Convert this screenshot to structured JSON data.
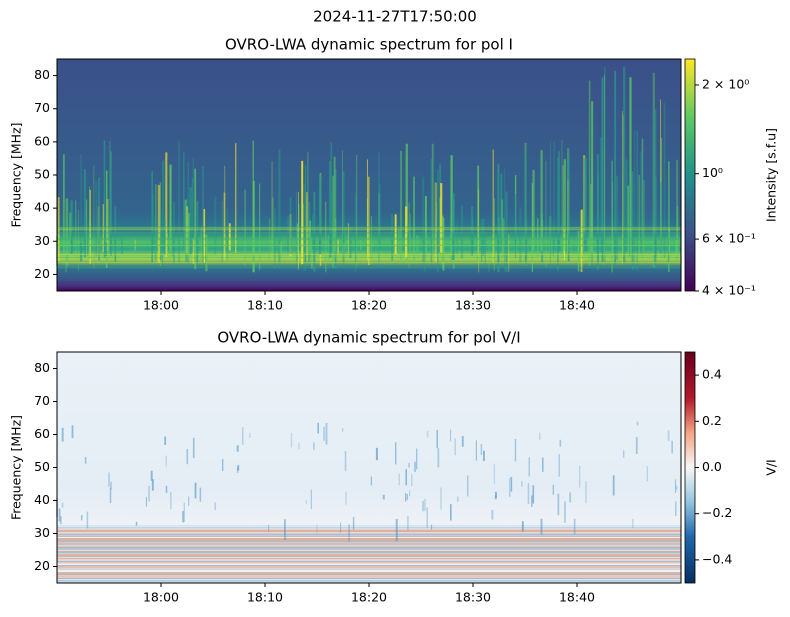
{
  "title": "2024-11-27T17:50:00",
  "chart_data": [
    {
      "type": "heatmap",
      "title": "OVRO-LWA dynamic spectrum for pol I",
      "ylabel": "Frequency [MHz]",
      "xlim": [
        "2024-11-27T17:50:00",
        "2024-11-27T18:50:00"
      ],
      "xticks": [
        {
          "value": "2024-11-27T18:00:00",
          "label": "18:00"
        },
        {
          "value": "2024-11-27T18:10:00",
          "label": "18:10"
        },
        {
          "value": "2024-11-27T18:20:00",
          "label": "18:20"
        },
        {
          "value": "2024-11-27T18:30:00",
          "label": "18:30"
        },
        {
          "value": "2024-11-27T18:40:00",
          "label": "18:40"
        }
      ],
      "ylim": [
        15,
        85
      ],
      "yticks": [
        20,
        30,
        40,
        50,
        60,
        70,
        80
      ],
      "colorbar": {
        "label": "Intensity [s.f.u]",
        "scale": "log",
        "colormap": "viridis",
        "lim": [
          0.4,
          2.45
        ],
        "ticks": [
          {
            "value": 2,
            "label": "2 × 10⁰"
          },
          {
            "value": 1,
            "label": "10⁰"
          },
          {
            "value": 0.6,
            "label": "6 × 10⁻¹"
          },
          {
            "value": 0.4,
            "label": "4 × 10⁻¹"
          }
        ]
      }
    },
    {
      "type": "heatmap",
      "title": "OVRO-LWA dynamic spectrum for pol V/I",
      "ylabel": "Frequency [MHz]",
      "xlim": [
        "2024-11-27T17:50:00",
        "2024-11-27T18:50:00"
      ],
      "xticks": [
        {
          "value": "2024-11-27T18:00:00",
          "label": "18:00"
        },
        {
          "value": "2024-11-27T18:10:00",
          "label": "18:10"
        },
        {
          "value": "2024-11-27T18:20:00",
          "label": "18:20"
        },
        {
          "value": "2024-11-27T18:30:00",
          "label": "18:30"
        },
        {
          "value": "2024-11-27T18:40:00",
          "label": "18:40"
        }
      ],
      "ylim": [
        15,
        85
      ],
      "yticks": [
        20,
        30,
        40,
        50,
        60,
        70,
        80
      ],
      "colorbar": {
        "label": "V/I",
        "scale": "linear",
        "colormap": "RdBu_r",
        "lim": [
          -0.5,
          0.5
        ],
        "ticks": [
          {
            "value": 0.4,
            "label": "0.4"
          },
          {
            "value": 0.2,
            "label": "0.2"
          },
          {
            "value": 0,
            "label": "0.0"
          },
          {
            "value": -0.2,
            "label": "−0.2"
          },
          {
            "value": -0.4,
            "label": "−0.4"
          }
        ]
      }
    }
  ]
}
